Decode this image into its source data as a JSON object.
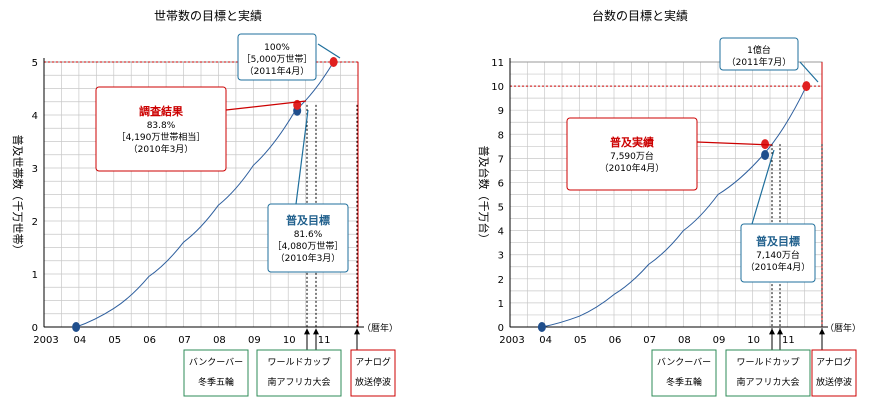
{
  "colors": {
    "grid": "#c8c8c8",
    "curve": "#2e5f9e",
    "marker_blue": "#1f4e8c",
    "marker_red": "#e02020",
    "survey_text": "#cc0000",
    "target_text": "#1f5f8c",
    "green_box": "#2e8b57",
    "red_box": "#cc0000",
    "blue_box": "#1f6f9c"
  },
  "chart_data": [
    {
      "type": "line",
      "title": "世帯数の目標と実績",
      "ylabel": "普及世帯数（千万世帯）",
      "xlabel": "",
      "x_unit_label": "（暦年）",
      "ylim": [
        0,
        5
      ],
      "yticks": [
        "0",
        "1",
        "2",
        "3",
        "4",
        "5"
      ],
      "xlim": [
        2003,
        2012
      ],
      "xticks": [
        {
          "x": 2003,
          "label": "2003"
        },
        {
          "x": 2004,
          "label": "04"
        },
        {
          "x": 2005,
          "label": "05"
        },
        {
          "x": 2006,
          "label": "06"
        },
        {
          "x": 2007,
          "label": "07"
        },
        {
          "x": 2008,
          "label": "08"
        },
        {
          "x": 2009,
          "label": "09"
        },
        {
          "x": 2010,
          "label": "10"
        },
        {
          "x": 2011,
          "label": "11"
        }
      ],
      "grid": true,
      "curve": {
        "x": [
          2003.92,
          2005,
          2006,
          2007,
          2008,
          2009,
          2010.2,
          2011.3
        ],
        "y": [
          0.0,
          0.35,
          0.95,
          1.6,
          2.3,
          3.05,
          4.08,
          5.0
        ]
      },
      "goal_line_y": 5.0,
      "marker_start": {
        "x": 2003.92,
        "y": 0.0
      },
      "marker_target": {
        "x": 2010.2,
        "y": 4.08
      },
      "marker_survey": {
        "x": 2010.2,
        "y": 4.19
      },
      "marker_goal": {
        "x": 2011.3,
        "y": 5.0
      },
      "events": [
        {
          "x": 2010.1,
          "lines": [
            "バンクーバー",
            "冬季五輪"
          ],
          "color": "green"
        },
        {
          "x": 2010.45,
          "lines": [
            "ワールドカップ",
            "南アフリカ大会"
          ],
          "color": "green"
        },
        {
          "x": 2011.55,
          "lines": [
            "アナログ",
            "放送停波"
          ],
          "color": "red"
        }
      ],
      "callouts": {
        "goal": [
          "100%",
          "［5,000万世帯］",
          "（2011年4月）"
        ],
        "survey": [
          "調査結果",
          "83.8%",
          "［4,190万世帯相当］",
          "（2010年3月）"
        ],
        "target": [
          "普及目標",
          "81.6%",
          "［4,080万世帯］",
          "（2010年3月）"
        ]
      }
    },
    {
      "type": "line",
      "title": "台数の目標と実績",
      "ylabel": "普及台数（千万台）",
      "xlabel": "",
      "x_unit_label": "（暦年）",
      "ylim": [
        0,
        11
      ],
      "yticks": [
        "0",
        "1",
        "2",
        "3",
        "4",
        "5",
        "6",
        "7",
        "8",
        "9",
        "10",
        "11"
      ],
      "xlim": [
        2003,
        2012
      ],
      "xticks": [
        {
          "x": 2003,
          "label": "2003"
        },
        {
          "x": 2004,
          "label": "04"
        },
        {
          "x": 2005,
          "label": "05"
        },
        {
          "x": 2006,
          "label": "06"
        },
        {
          "x": 2007,
          "label": "07"
        },
        {
          "x": 2008,
          "label": "08"
        },
        {
          "x": 2009,
          "label": "09"
        },
        {
          "x": 2010,
          "label": "10"
        },
        {
          "x": 2011,
          "label": "11"
        }
      ],
      "grid": true,
      "curve": {
        "x": [
          2003.92,
          2005,
          2006,
          2007,
          2008,
          2009,
          2010.3,
          2011.55
        ],
        "y": [
          0.0,
          0.45,
          1.35,
          2.6,
          4.0,
          5.5,
          7.14,
          10.0
        ]
      },
      "goal_line_y": 10.0,
      "marker_start": {
        "x": 2003.92,
        "y": 0.0
      },
      "marker_target": {
        "x": 2010.3,
        "y": 7.14
      },
      "marker_survey": {
        "x": 2010.3,
        "y": 7.59
      },
      "marker_goal": {
        "x": 2011.55,
        "y": 10.0
      },
      "events": [
        {
          "x": 2010.1,
          "lines": [
            "バンクーバー",
            "冬季五輪"
          ],
          "color": "green"
        },
        {
          "x": 2010.45,
          "lines": [
            "ワールドカップ",
            "南アフリカ大会"
          ],
          "color": "green"
        },
        {
          "x": 2011.55,
          "lines": [
            "アナログ",
            "放送停波"
          ],
          "color": "red"
        }
      ],
      "callouts": {
        "goal": [
          "1億台",
          "（2011年7月）"
        ],
        "survey": [
          "普及実績",
          "7,590万台",
          "（2010年4月）"
        ],
        "target": [
          "普及目標",
          "7,140万台",
          "（2010年4月）"
        ]
      }
    }
  ]
}
